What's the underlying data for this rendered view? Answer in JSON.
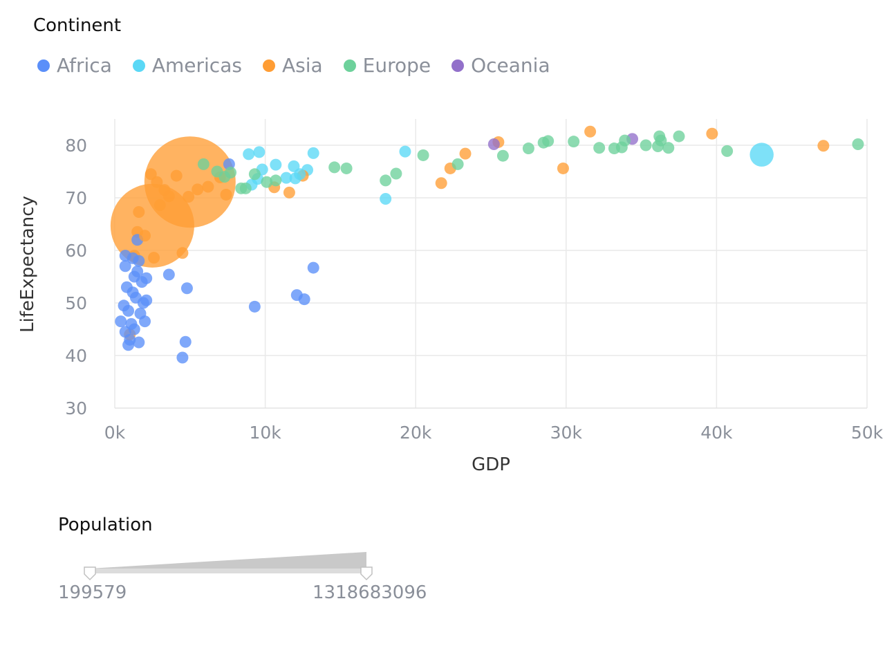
{
  "chart_data": {
    "type": "scatter",
    "title": "",
    "xlabel": "GDP",
    "ylabel": "LifeExpectancy",
    "xlim": [
      0,
      50000
    ],
    "ylim": [
      30,
      85
    ],
    "x_ticks": [
      "0k",
      "10k",
      "20k",
      "30k",
      "40k",
      "50k"
    ],
    "x_tick_values": [
      0,
      10000,
      20000,
      30000,
      40000,
      50000
    ],
    "y_ticks": [
      "30",
      "40",
      "50",
      "60",
      "70",
      "80"
    ],
    "y_tick_values": [
      30,
      40,
      50,
      60,
      70,
      80
    ],
    "grid": true,
    "legend": {
      "title": "Continent",
      "placement": "top-left",
      "items": [
        {
          "name": "Africa",
          "color": "#5B8FF9"
        },
        {
          "name": "Americas",
          "color": "#5AD8F6"
        },
        {
          "name": "Asia",
          "color": "#FF9D34"
        },
        {
          "name": "Europe",
          "color": "#6DD19B"
        },
        {
          "name": "Oceania",
          "color": "#9270CA"
        }
      ]
    },
    "size_legend": {
      "title": "Population",
      "min": "199579",
      "max": "1318683096"
    },
    "series": [
      {
        "name": "Africa",
        "points": [
          [
            400,
            46.5,
            4
          ],
          [
            600,
            49.5,
            3
          ],
          [
            700,
            57,
            3
          ],
          [
            800,
            53,
            6
          ],
          [
            900,
            48.5,
            2
          ],
          [
            1000,
            43,
            2
          ],
          [
            1100,
            46,
            2
          ],
          [
            1200,
            52,
            3
          ],
          [
            1300,
            55,
            2
          ],
          [
            1400,
            51,
            3
          ],
          [
            1500,
            56,
            2
          ],
          [
            1600,
            42.5,
            2
          ],
          [
            1700,
            48,
            2
          ],
          [
            1800,
            54,
            2
          ],
          [
            1900,
            50,
            2
          ],
          [
            2000,
            46.5,
            12
          ],
          [
            2100,
            50.5,
            2
          ],
          [
            2100,
            54.7,
            2
          ],
          [
            1200,
            58.5,
            2
          ],
          [
            900,
            42,
            3
          ],
          [
            700,
            59,
            2
          ],
          [
            1300,
            45,
            2
          ],
          [
            3600,
            55.4,
            2
          ],
          [
            4500,
            39.6,
            2
          ],
          [
            4700,
            42.6,
            3
          ],
          [
            4800,
            52.8,
            2
          ],
          [
            7600,
            76.4,
            2
          ],
          [
            9300,
            49.3,
            3
          ],
          [
            12100,
            51.5,
            2
          ],
          [
            12600,
            50.7,
            2
          ],
          [
            13200,
            56.7,
            2
          ],
          [
            1600,
            58,
            2
          ],
          [
            700,
            44.5,
            2
          ],
          [
            1500,
            62,
            2
          ]
        ]
      },
      {
        "name": "Americas",
        "points": [
          [
            8900,
            78.3,
            3
          ],
          [
            9100,
            72.5,
            15
          ],
          [
            9600,
            78.7,
            3
          ],
          [
            9800,
            75.4,
            2
          ],
          [
            10700,
            76.3,
            2
          ],
          [
            11400,
            73.8,
            3
          ],
          [
            11900,
            76,
            15
          ],
          [
            12300,
            74.5,
            2
          ],
          [
            12800,
            75.3,
            3
          ],
          [
            13200,
            78.5,
            3
          ],
          [
            18000,
            69.8,
            2
          ],
          [
            19300,
            78.8,
            2
          ],
          [
            43000,
            78.2,
            90
          ],
          [
            12000,
            73.7,
            2
          ],
          [
            9500,
            73.6,
            2
          ]
        ]
      },
      {
        "name": "Asia",
        "points": [
          [
            2500,
            64.7,
            1110
          ],
          [
            5000,
            73,
            1318
          ],
          [
            1000,
            44,
            3
          ],
          [
            1300,
            59,
            3
          ],
          [
            1500,
            63.5,
            6
          ],
          [
            1600,
            67.3,
            3
          ],
          [
            2000,
            62.8,
            2
          ],
          [
            2400,
            74.5,
            5
          ],
          [
            2600,
            58.6,
            8
          ],
          [
            2800,
            73,
            12
          ],
          [
            3000,
            68.6,
            4
          ],
          [
            3300,
            71.5,
            4
          ],
          [
            3600,
            70.3,
            8
          ],
          [
            4100,
            74.2,
            2
          ],
          [
            4500,
            59.5,
            2
          ],
          [
            4900,
            70.2,
            3
          ],
          [
            5500,
            71.6,
            5
          ],
          [
            6200,
            72.1,
            3
          ],
          [
            7000,
            73.9,
            2
          ],
          [
            7400,
            70.6,
            6
          ],
          [
            10600,
            72,
            2
          ],
          [
            11600,
            71,
            5
          ],
          [
            12500,
            74.2,
            3
          ],
          [
            21700,
            72.8,
            2
          ],
          [
            22300,
            75.6,
            2
          ],
          [
            23300,
            78.4,
            3
          ],
          [
            25500,
            80.6,
            2
          ],
          [
            29800,
            75.6,
            2
          ],
          [
            31600,
            82.6,
            12
          ],
          [
            39700,
            82.2,
            2
          ],
          [
            47100,
            79.9,
            2
          ]
        ]
      },
      {
        "name": "Europe",
        "points": [
          [
            5900,
            76.4,
            2
          ],
          [
            6800,
            75,
            2
          ],
          [
            7300,
            74,
            2
          ],
          [
            7700,
            74.8,
            2
          ],
          [
            8400,
            71.8,
            3
          ],
          [
            8700,
            71.8,
            2
          ],
          [
            9300,
            74.5,
            2
          ],
          [
            10100,
            73,
            2
          ],
          [
            10700,
            73.3,
            2
          ],
          [
            14600,
            75.8,
            2
          ],
          [
            15400,
            75.6,
            2
          ],
          [
            18000,
            73.3,
            2
          ],
          [
            18700,
            74.6,
            2
          ],
          [
            20500,
            78.1,
            2
          ],
          [
            22800,
            76.4,
            2
          ],
          [
            25800,
            78,
            2
          ],
          [
            27500,
            79.4,
            2
          ],
          [
            28500,
            80.5,
            4
          ],
          [
            28800,
            80.8,
            3
          ],
          [
            30500,
            80.7,
            4
          ],
          [
            32200,
            79.5,
            5
          ],
          [
            33200,
            79.4,
            3
          ],
          [
            33700,
            79.6,
            3
          ],
          [
            33900,
            80.9,
            2
          ],
          [
            35300,
            80,
            2
          ],
          [
            36100,
            79.8,
            2
          ],
          [
            36200,
            81.7,
            2
          ],
          [
            36300,
            80.9,
            2
          ],
          [
            36800,
            79.5,
            2
          ],
          [
            37500,
            81.7,
            2
          ],
          [
            40700,
            78.9,
            2
          ],
          [
            49400,
            80.2,
            2
          ]
        ]
      },
      {
        "name": "Oceania",
        "points": [
          [
            25200,
            80.2,
            2
          ],
          [
            34400,
            81.2,
            3
          ]
        ]
      }
    ]
  }
}
